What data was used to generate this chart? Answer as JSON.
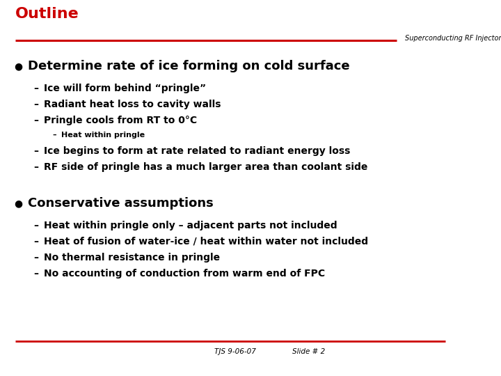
{
  "title": "Outline",
  "subtitle": "Superconducting RF Injector",
  "title_color": "#cc0000",
  "line_color": "#cc0000",
  "bg_color": "#ffffff",
  "text_color": "#000000",
  "footer_left": "TJS 9-06-07",
  "footer_right": "Slide # 2",
  "bullet1_header": "Determine rate of ice forming on cold surface",
  "bullet1_sub": [
    "Ice will form behind “pringle”",
    "Radiant heat loss to cavity walls",
    "Pringle cools from RT to 0°C"
  ],
  "bullet1_subsub": "Heat within pringle",
  "bullet1_sub2": [
    "Ice begins to form at rate related to radiant energy loss",
    "RF side of pringle has a much larger area than coolant side"
  ],
  "bullet2_header": "Conservative assumptions",
  "bullet2_sub": [
    "Heat within pringle only – adjacent parts not included",
    "Heat of fusion of water-ice / heat within water not included",
    "No thermal resistance in pringle",
    "No accounting of conduction from warm end of FPC"
  ],
  "title_fontsize": 16,
  "subtitle_fontsize": 7,
  "bullet_header_fontsize": 13,
  "sub_fontsize": 10,
  "subsub_fontsize": 8,
  "footer_fontsize": 7.5
}
